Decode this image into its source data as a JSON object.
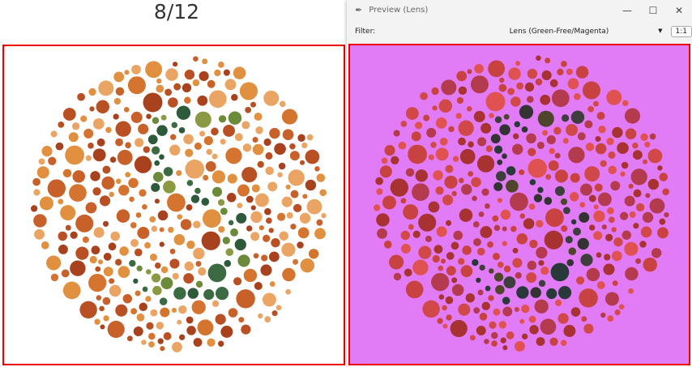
{
  "main": {
    "progress": "8/12"
  },
  "preview_window": {
    "title": "Preview (Lens)",
    "filter_label": "Filter:",
    "filter_value": "Lens (Green-Free/Magenta)",
    "zoom_button": "1:1"
  }
}
